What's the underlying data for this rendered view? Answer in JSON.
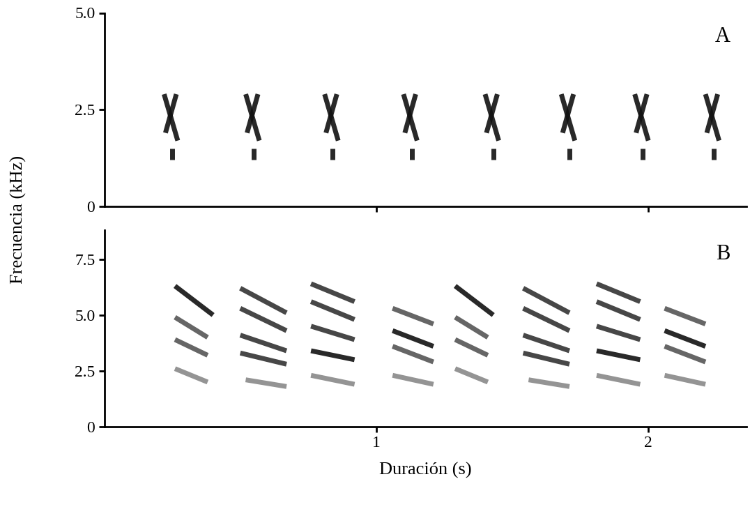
{
  "chart_data": [
    {
      "type": "spectrogram",
      "annotation": "A",
      "ylabel": "Frecuencia (kHz)",
      "xlim": [
        0,
        2.36
      ],
      "xticks": [
        1,
        2
      ],
      "ylim": [
        0,
        5
      ],
      "yticks": [
        0,
        2.5,
        {
          "value": 5,
          "label": "5.0"
        }
      ],
      "tick_labels": "y",
      "color": "#111111",
      "strokes": [
        [
          0.22,
          2.9,
          0.27,
          1.7
        ],
        [
          0.225,
          1.9,
          0.265,
          2.9
        ],
        [
          0.25,
          1.5,
          0.25,
          1.2
        ],
        [
          0.52,
          2.9,
          0.57,
          1.7
        ],
        [
          0.525,
          1.9,
          0.565,
          2.9
        ],
        [
          0.55,
          1.5,
          0.55,
          1.2
        ],
        [
          0.81,
          2.9,
          0.86,
          1.7
        ],
        [
          0.815,
          1.9,
          0.855,
          2.9
        ],
        [
          0.84,
          1.5,
          0.84,
          1.2
        ],
        [
          1.1,
          2.9,
          1.15,
          1.7
        ],
        [
          1.105,
          1.9,
          1.145,
          2.9
        ],
        [
          1.13,
          1.5,
          1.13,
          1.2
        ],
        [
          1.4,
          2.9,
          1.45,
          1.7
        ],
        [
          1.405,
          1.9,
          1.445,
          2.9
        ],
        [
          1.43,
          1.5,
          1.43,
          1.2
        ],
        [
          1.68,
          2.9,
          1.73,
          1.7
        ],
        [
          1.685,
          1.9,
          1.725,
          2.9
        ],
        [
          1.71,
          1.5,
          1.71,
          1.2
        ],
        [
          1.95,
          2.9,
          2.0,
          1.7
        ],
        [
          1.955,
          1.9,
          1.995,
          2.9
        ],
        [
          1.98,
          1.5,
          1.98,
          1.2
        ],
        [
          2.21,
          2.9,
          2.26,
          1.7
        ],
        [
          2.215,
          1.9,
          2.255,
          2.9
        ],
        [
          2.24,
          1.5,
          2.24,
          1.2
        ]
      ]
    },
    {
      "type": "spectrogram",
      "annotation": "B",
      "xlabel": "Duración (s)",
      "xlim": [
        0,
        2.36
      ],
      "xticks": [
        1,
        2
      ],
      "ylim": [
        0,
        8.8
      ],
      "yticks": [
        0,
        2.5,
        {
          "value": 5,
          "label": "5.0"
        },
        7.5
      ],
      "strokes": [
        [
          0.26,
          6.3,
          0.4,
          5.0
        ],
        [
          0.26,
          4.9,
          0.38,
          4.0
        ],
        [
          0.26,
          3.9,
          0.38,
          3.2
        ],
        [
          0.26,
          2.6,
          0.38,
          2.0
        ],
        [
          0.5,
          6.2,
          0.67,
          5.1
        ],
        [
          0.5,
          5.3,
          0.67,
          4.3
        ],
        [
          0.5,
          4.1,
          0.67,
          3.4
        ],
        [
          0.5,
          3.3,
          0.67,
          2.8
        ],
        [
          0.52,
          2.1,
          0.67,
          1.8
        ],
        [
          0.76,
          6.4,
          0.92,
          5.6
        ],
        [
          0.76,
          5.6,
          0.92,
          4.8
        ],
        [
          0.76,
          4.5,
          0.92,
          3.9
        ],
        [
          0.76,
          3.4,
          0.92,
          3.0
        ],
        [
          0.76,
          2.3,
          0.92,
          1.9
        ],
        [
          1.06,
          5.3,
          1.21,
          4.6
        ],
        [
          1.06,
          4.3,
          1.21,
          3.6
        ],
        [
          1.06,
          3.6,
          1.21,
          2.9
        ],
        [
          1.06,
          2.3,
          1.21,
          1.9
        ],
        [
          1.29,
          6.3,
          1.43,
          5.0
        ],
        [
          1.29,
          4.9,
          1.41,
          4.0
        ],
        [
          1.29,
          3.9,
          1.41,
          3.2
        ],
        [
          1.29,
          2.6,
          1.41,
          2.0
        ],
        [
          1.54,
          6.2,
          1.71,
          5.1
        ],
        [
          1.54,
          5.3,
          1.71,
          4.3
        ],
        [
          1.54,
          4.1,
          1.71,
          3.4
        ],
        [
          1.54,
          3.3,
          1.71,
          2.8
        ],
        [
          1.56,
          2.1,
          1.71,
          1.8
        ],
        [
          1.81,
          6.4,
          1.97,
          5.6
        ],
        [
          1.81,
          5.6,
          1.97,
          4.8
        ],
        [
          1.81,
          4.5,
          1.97,
          3.9
        ],
        [
          1.81,
          3.4,
          1.97,
          3.0
        ],
        [
          1.81,
          2.3,
          1.97,
          1.9
        ],
        [
          2.06,
          5.3,
          2.21,
          4.6
        ],
        [
          2.06,
          4.3,
          2.21,
          3.6
        ],
        [
          2.06,
          3.6,
          2.21,
          2.9
        ],
        [
          2.06,
          2.3,
          2.21,
          1.9
        ]
      ],
      "colors": [
        "#111111",
        "#555555",
        "#555555",
        "#888888",
        "#333333",
        "#333333",
        "#333333",
        "#333333",
        "#888888",
        "#333333",
        "#333333",
        "#333333",
        "#111111",
        "#888888",
        "#555555",
        "#111111",
        "#555555",
        "#888888",
        "#111111",
        "#555555",
        "#555555",
        "#888888",
        "#333333",
        "#333333",
        "#333333",
        "#333333",
        "#888888",
        "#333333",
        "#333333",
        "#333333",
        "#111111",
        "#888888",
        "#555555",
        "#111111",
        "#555555",
        "#888888"
      ]
    }
  ]
}
